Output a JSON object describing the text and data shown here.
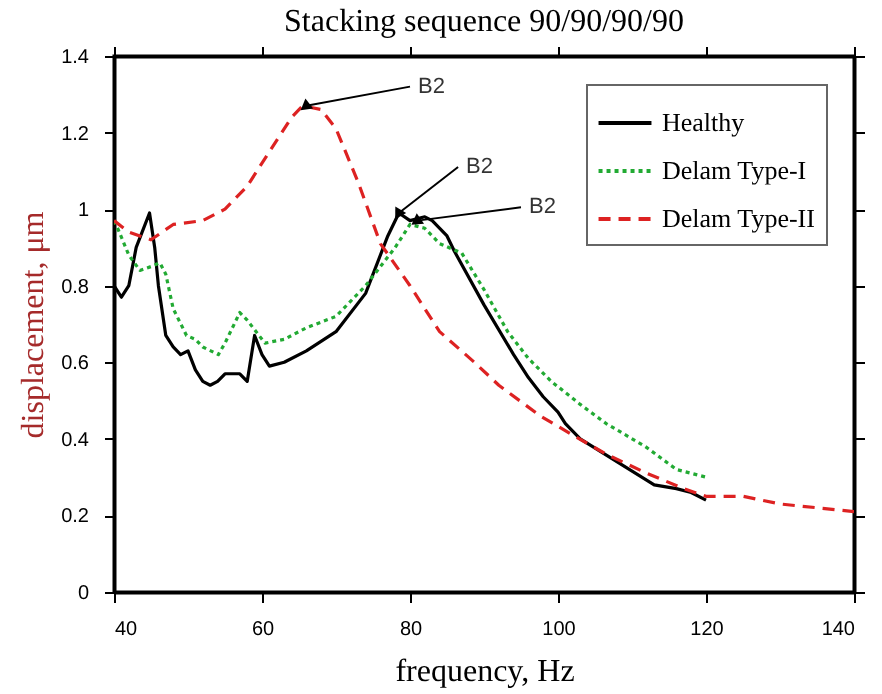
{
  "chart_data": {
    "type": "line",
    "title": "Stacking sequence 90/90/90/90",
    "xlabel": "frequency, Hz",
    "ylabel": "displacement, μm",
    "xlim": [
      40,
      140
    ],
    "xticks": [
      40,
      60,
      80,
      100,
      120,
      140
    ],
    "ylim": [
      0,
      1.4
    ],
    "yticks": [
      0,
      0.2,
      0.4,
      0.6,
      0.8,
      1,
      1.2,
      1.4
    ],
    "grid": false,
    "legend": "top right",
    "series": [
      {
        "name": "Healthy",
        "color": "#000000",
        "line_style": "solid",
        "x": [
          40,
          41,
          42,
          43,
          44.8,
          45.5,
          46,
          47,
          48,
          49,
          50,
          51,
          52,
          53,
          54,
          55,
          57,
          58,
          59,
          60,
          61,
          63,
          66,
          70,
          74,
          77,
          78.5,
          80,
          82,
          83,
          85,
          86,
          90,
          94,
          96,
          98,
          100,
          101,
          103,
          108,
          113,
          116,
          118,
          120
        ],
        "values": [
          0.8,
          0.77,
          0.8,
          0.9,
          0.99,
          0.9,
          0.8,
          0.67,
          0.64,
          0.62,
          0.63,
          0.58,
          0.55,
          0.54,
          0.55,
          0.57,
          0.57,
          0.55,
          0.67,
          0.62,
          0.59,
          0.6,
          0.63,
          0.68,
          0.78,
          0.93,
          0.99,
          0.97,
          0.98,
          0.97,
          0.93,
          0.89,
          0.75,
          0.62,
          0.56,
          0.51,
          0.47,
          0.44,
          0.4,
          0.34,
          0.28,
          0.27,
          0.26,
          0.24
        ]
      },
      {
        "name": "Delam Type-I",
        "color": "#22aa33",
        "line_style": "dotted",
        "x": [
          40,
          40.5,
          42,
          43.5,
          45,
          46.2,
          47,
          48,
          49.8,
          51,
          52,
          54.1,
          55,
          57,
          58,
          60.4,
          63,
          66,
          70,
          74,
          78,
          80,
          82,
          84,
          87,
          90,
          93.2,
          96,
          99.1,
          103,
          106.5,
          111.8,
          116,
          120
        ],
        "values": [
          0.97,
          0.95,
          0.88,
          0.84,
          0.85,
          0.86,
          0.83,
          0.74,
          0.67,
          0.66,
          0.64,
          0.62,
          0.65,
          0.73,
          0.71,
          0.65,
          0.66,
          0.69,
          0.72,
          0.8,
          0.9,
          0.96,
          0.95,
          0.91,
          0.885,
          0.79,
          0.68,
          0.61,
          0.55,
          0.49,
          0.44,
          0.38,
          0.32,
          0.3
        ]
      },
      {
        "name": "Delam Type-II",
        "color": "#dd2222",
        "line_style": "dashed",
        "x": [
          40,
          42,
          45,
          48,
          52,
          55,
          58,
          61,
          64,
          65.5,
          68,
          70,
          73,
          76,
          80,
          84,
          88.7,
          92,
          97.6,
          102,
          106.5,
          112,
          117,
          120,
          125,
          130,
          135,
          140
        ],
        "values": [
          0.97,
          0.94,
          0.92,
          0.96,
          0.97,
          1.0,
          1.06,
          1.15,
          1.24,
          1.27,
          1.26,
          1.21,
          1.07,
          0.91,
          0.8,
          0.68,
          0.6,
          0.54,
          0.46,
          0.41,
          0.36,
          0.31,
          0.27,
          0.25,
          0.25,
          0.23,
          0.22,
          0.21
        ]
      }
    ],
    "annotations": [
      {
        "text": "B2",
        "x": 66,
        "y": 1.27
      },
      {
        "text": "B2",
        "x": 78.5,
        "y": 0.99
      },
      {
        "text": "B2",
        "x": 81,
        "y": 0.97
      }
    ]
  }
}
